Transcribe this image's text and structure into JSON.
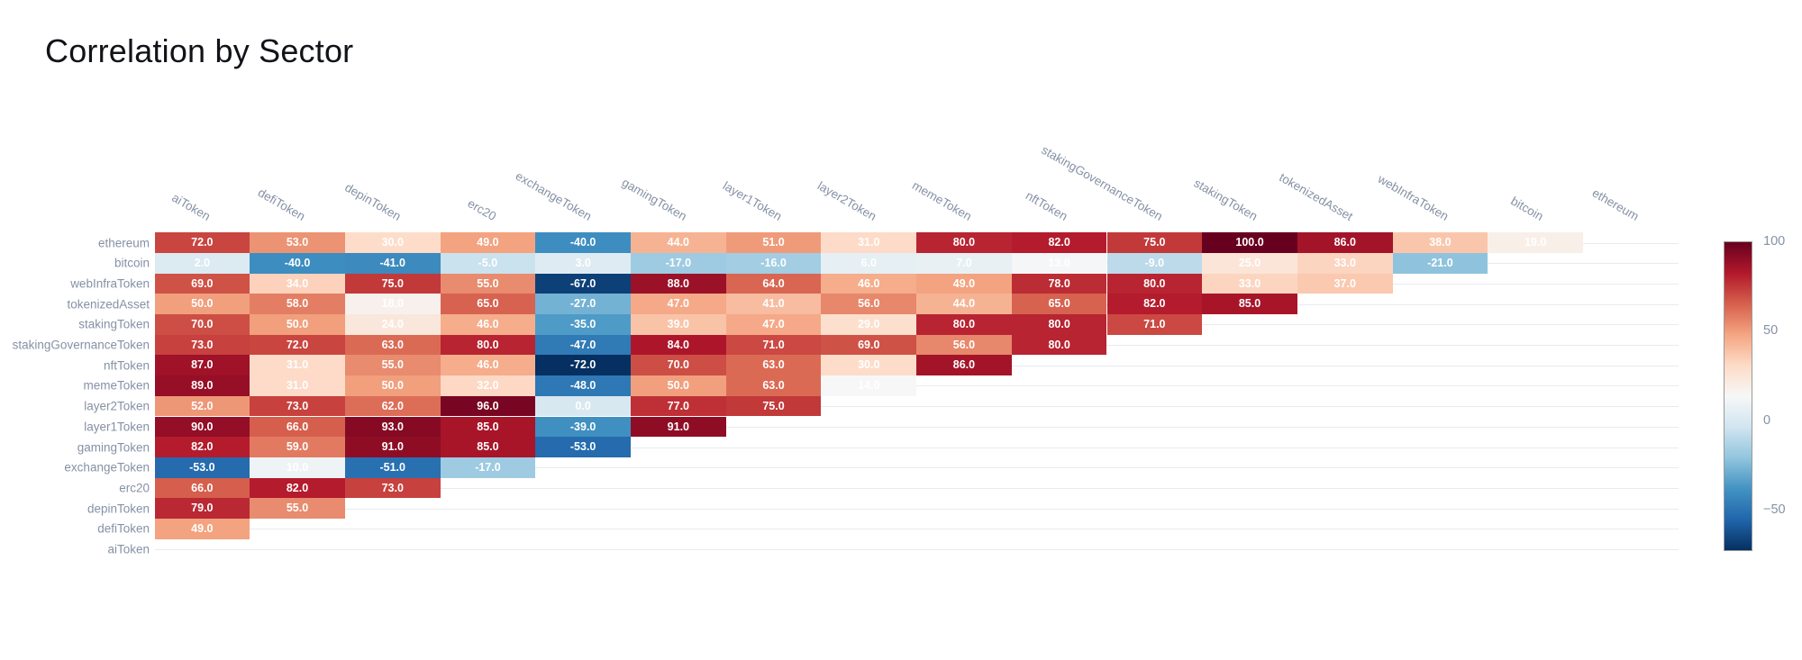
{
  "title": "Correlation by Sector",
  "chart_data": {
    "type": "heatmap",
    "title": "Correlation by Sector",
    "x_labels": [
      "aiToken",
      "defiToken",
      "depinToken",
      "erc20",
      "exchangeToken",
      "gamingToken",
      "layer1Token",
      "layer2Token",
      "memeToken",
      "nftToken",
      "stakingGovernanceToken",
      "stakingToken",
      "tokenizedAsset",
      "webInfraToken",
      "bitcoin",
      "ethereum"
    ],
    "y_labels_top_to_bottom": [
      "ethereum",
      "bitcoin",
      "webInfraToken",
      "tokenizedAsset",
      "stakingToken",
      "stakingGovernanceToken",
      "nftToken",
      "memeToken",
      "layer2Token",
      "layer1Token",
      "gamingToken",
      "exchangeToken",
      "erc20",
      "depinToken",
      "defiToken",
      "aiToken"
    ],
    "rows": [
      {
        "label": "ethereum",
        "values": [
          72,
          53,
          30,
          49,
          -40,
          44,
          51,
          31,
          80,
          82,
          75,
          100,
          86,
          38,
          19
        ]
      },
      {
        "label": "bitcoin",
        "values": [
          2,
          -40,
          -41,
          -5,
          3,
          -17,
          -16,
          6,
          7,
          13,
          -9,
          25,
          33,
          -21
        ]
      },
      {
        "label": "webInfraToken",
        "values": [
          69,
          34,
          75,
          55,
          -67,
          88,
          64,
          46,
          49,
          78,
          80,
          33,
          37
        ]
      },
      {
        "label": "tokenizedAsset",
        "values": [
          50,
          58,
          18,
          65,
          -27,
          47,
          41,
          56,
          44,
          65,
          82,
          85
        ]
      },
      {
        "label": "stakingToken",
        "values": [
          70,
          50,
          24,
          46,
          -35,
          39,
          47,
          29,
          80,
          80,
          71
        ]
      },
      {
        "label": "stakingGovernanceToken",
        "values": [
          73,
          72,
          63,
          80,
          -47,
          84,
          71,
          69,
          56,
          80
        ]
      },
      {
        "label": "nftToken",
        "values": [
          87,
          31,
          55,
          46,
          -72,
          70,
          63,
          30,
          86
        ]
      },
      {
        "label": "memeToken",
        "values": [
          89,
          31,
          50,
          32,
          -48,
          50,
          63,
          14
        ]
      },
      {
        "label": "layer2Token",
        "values": [
          52,
          73,
          62,
          96,
          0,
          77,
          75
        ]
      },
      {
        "label": "layer1Token",
        "values": [
          90,
          66,
          93,
          85,
          -39,
          91
        ]
      },
      {
        "label": "gamingToken",
        "values": [
          82,
          59,
          91,
          85,
          -53
        ]
      },
      {
        "label": "exchangeToken",
        "values": [
          -53,
          10,
          -51,
          -17
        ]
      },
      {
        "label": "erc20",
        "values": [
          66,
          82,
          73
        ]
      },
      {
        "label": "depinToken",
        "values": [
          79,
          55
        ]
      },
      {
        "label": "defiToken",
        "values": [
          49
        ]
      },
      {
        "label": "aiToken",
        "values": []
      }
    ],
    "value_decimals": 1,
    "colorscale": {
      "name": "RdBu_r",
      "vmin": -72,
      "vmax": 100,
      "stops": [
        "#053061",
        "#2166ac",
        "#4393c3",
        "#92c5de",
        "#d1e5f0",
        "#f7f7f7",
        "#fddbc7",
        "#f4a582",
        "#d6604d",
        "#b2182b",
        "#67001f"
      ]
    },
    "colorbar": {
      "tick_labels": [
        "100",
        "50",
        "0",
        "−50"
      ],
      "tick_values": [
        100,
        50,
        0,
        -50
      ],
      "position": "right"
    },
    "grid": true,
    "cell_text_color": "#ffffff"
  },
  "colors": {
    "title": "#111318",
    "axis_label": "#8691a5",
    "gridline": "#e7ebf2",
    "colorbar_border": "#999999",
    "background": "#ffffff"
  }
}
